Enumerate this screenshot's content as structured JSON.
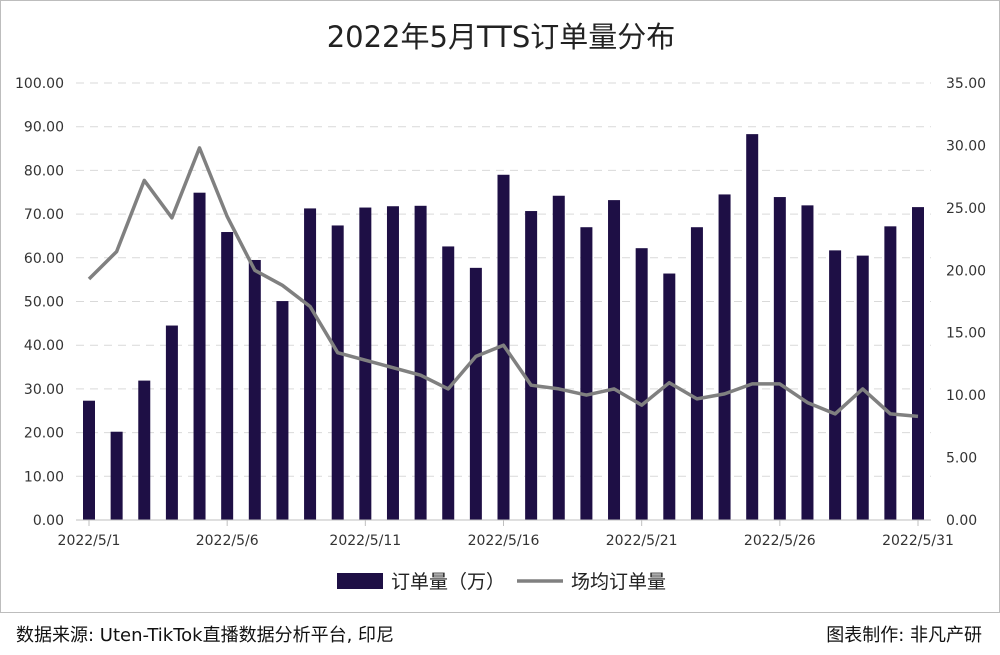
{
  "chart_data": {
    "type": "bar+line",
    "title": "2022年5月TTS订单量分布",
    "categories": [
      "2022/5/1",
      "2022/5/2",
      "2022/5/3",
      "2022/5/4",
      "2022/5/5",
      "2022/5/6",
      "2022/5/7",
      "2022/5/8",
      "2022/5/9",
      "2022/5/10",
      "2022/5/11",
      "2022/5/12",
      "2022/5/13",
      "2022/5/14",
      "2022/5/15",
      "2022/5/16",
      "2022/5/17",
      "2022/5/18",
      "2022/5/19",
      "2022/5/20",
      "2022/5/21",
      "2022/5/22",
      "2022/5/23",
      "2022/5/24",
      "2022/5/25",
      "2022/5/26",
      "2022/5/27",
      "2022/5/28",
      "2022/5/29",
      "2022/5/30",
      "2022/5/31"
    ],
    "x_tick_labels": [
      "2022/5/1",
      "2022/5/6",
      "2022/5/11",
      "2022/5/16",
      "2022/5/21",
      "2022/5/26",
      "2022/5/31"
    ],
    "series": [
      {
        "name": "订单量（万）",
        "type": "bar",
        "axis": "left",
        "color": "#1e0f45",
        "values": [
          27.3,
          20.2,
          31.9,
          44.5,
          74.9,
          65.9,
          59.5,
          50.1,
          71.3,
          67.4,
          71.5,
          71.8,
          71.9,
          62.6,
          57.7,
          79.0,
          70.7,
          74.2,
          67.0,
          73.2,
          62.2,
          56.4,
          67.0,
          74.5,
          88.3,
          73.9,
          72.0,
          61.7,
          60.5,
          67.2,
          71.6
        ]
      },
      {
        "name": "场均订单量",
        "type": "line",
        "axis": "right",
        "color": "#808080",
        "values": [
          19.3,
          21.5,
          27.2,
          24.2,
          29.8,
          24.3,
          20.0,
          18.8,
          17.1,
          13.4,
          12.8,
          12.2,
          11.6,
          10.5,
          13.1,
          14.0,
          10.8,
          10.5,
          10.0,
          10.5,
          9.2,
          11.0,
          9.7,
          10.1,
          10.9,
          10.9,
          9.4,
          8.5,
          10.5,
          8.5,
          8.3
        ]
      }
    ],
    "ylim_left": [
      0,
      100
    ],
    "yticks_left": [
      "0.00",
      "10.00",
      "20.00",
      "30.00",
      "40.00",
      "50.00",
      "60.00",
      "70.00",
      "80.00",
      "90.00",
      "100.00"
    ],
    "ylim_right": [
      0,
      35
    ],
    "yticks_right": [
      "0.00",
      "5.00",
      "10.00",
      "15.00",
      "20.00",
      "25.00",
      "30.00",
      "35.00"
    ],
    "grid": true,
    "legend_position": "bottom"
  },
  "footer": {
    "source": "数据来源: Uten-TikTok直播数据分析平台, 印尼",
    "credit": "图表制作: 非凡产研"
  }
}
